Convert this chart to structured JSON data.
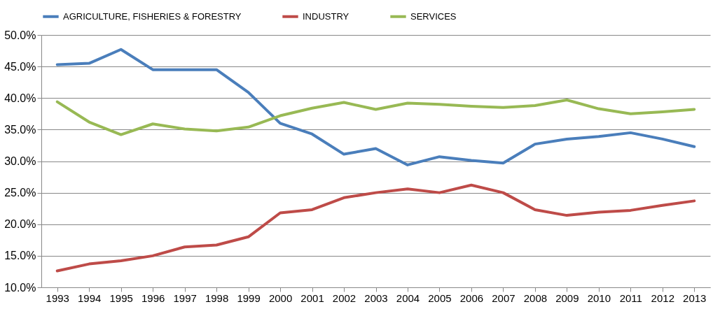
{
  "chart_data": {
    "type": "line",
    "categories": [
      "1993",
      "1994",
      "1995",
      "1996",
      "1997",
      "1998",
      "1999",
      "2000",
      "2001",
      "2002",
      "2003",
      "2004",
      "2005",
      "2006",
      "2007",
      "2008",
      "2009",
      "2010",
      "2011",
      "2012",
      "2013"
    ],
    "series": [
      {
        "name": "AGRICULTURE, FISHERIES & FORESTRY",
        "color": "#4a7ebb",
        "values": [
          45.3,
          45.5,
          47.7,
          44.5,
          44.5,
          44.5,
          40.9,
          36.0,
          34.3,
          31.1,
          32.0,
          29.4,
          30.7,
          30.1,
          29.7,
          32.7,
          33.5,
          33.9,
          34.5,
          33.5,
          32.3
        ]
      },
      {
        "name": "INDUSTRY",
        "color": "#be4b48",
        "values": [
          12.6,
          13.7,
          14.2,
          15.0,
          16.4,
          16.7,
          18.0,
          21.8,
          22.3,
          24.2,
          25.0,
          25.6,
          25.0,
          26.2,
          25.0,
          22.3,
          21.4,
          21.9,
          22.2,
          23.0,
          23.7
        ]
      },
      {
        "name": "SERVICES",
        "color": "#98b954",
        "values": [
          39.4,
          36.2,
          34.2,
          35.9,
          35.1,
          34.8,
          35.4,
          37.2,
          38.4,
          39.3,
          38.2,
          39.2,
          39.0,
          38.7,
          38.5,
          38.8,
          39.7,
          38.3,
          37.5,
          37.8,
          38.2
        ]
      }
    ],
    "ylim": [
      10,
      50
    ],
    "yticks": [
      {
        "value": 10,
        "label": "10.0%"
      },
      {
        "value": 15,
        "label": "15.0%"
      },
      {
        "value": 20,
        "label": "20.0%"
      },
      {
        "value": 25,
        "label": "25.0%"
      },
      {
        "value": 30,
        "label": "30.0%"
      },
      {
        "value": 35,
        "label": "35.0%"
      },
      {
        "value": 40,
        "label": "40.0%"
      },
      {
        "value": 45,
        "label": "45.0%"
      },
      {
        "value": 50,
        "label": "50.0%"
      }
    ],
    "grid": "y",
    "legend": "top",
    "marker": "none",
    "line_style": "solid"
  }
}
